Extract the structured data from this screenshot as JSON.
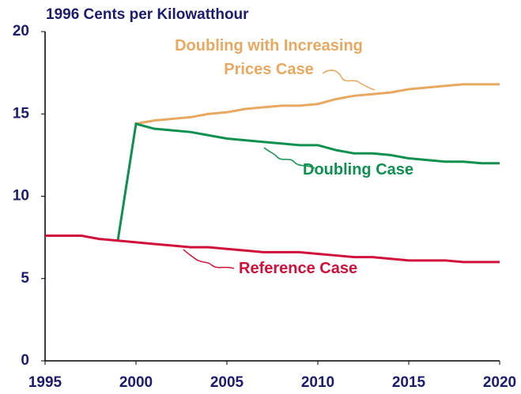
{
  "chart_data": {
    "type": "line",
    "title": "1996 Cents per Kilowatthour",
    "x": [
      1995,
      1996,
      1997,
      1998,
      1999,
      2000,
      2001,
      2002,
      2003,
      2004,
      2005,
      2006,
      2007,
      2008,
      2009,
      2010,
      2011,
      2012,
      2013,
      2014,
      2015,
      2016,
      2017,
      2018,
      2019,
      2020
    ],
    "series": [
      {
        "name": "Doubling with Increasing Prices Case",
        "color": "#e8a860",
        "values": [
          null,
          null,
          null,
          null,
          null,
          14.4,
          14.6,
          14.7,
          14.8,
          15.0,
          15.1,
          15.3,
          15.4,
          15.5,
          15.5,
          15.6,
          15.9,
          16.1,
          16.2,
          16.3,
          16.5,
          16.6,
          16.7,
          16.8,
          16.8,
          16.8
        ]
      },
      {
        "name": "Doubling Case",
        "color": "#109050",
        "values": [
          null,
          null,
          null,
          null,
          7.3,
          14.4,
          14.1,
          14.0,
          13.9,
          13.7,
          13.5,
          13.4,
          13.3,
          13.2,
          13.1,
          13.1,
          12.8,
          12.6,
          12.6,
          12.5,
          12.3,
          12.2,
          12.1,
          12.1,
          12.0,
          12.0
        ]
      },
      {
        "name": "Reference Case",
        "color": "#d0103a",
        "values": [
          7.6,
          7.6,
          7.6,
          7.4,
          7.3,
          7.2,
          7.1,
          7.0,
          6.9,
          6.9,
          6.8,
          6.7,
          6.6,
          6.6,
          6.6,
          6.5,
          6.4,
          6.3,
          6.3,
          6.2,
          6.1,
          6.1,
          6.1,
          6.0,
          6.0,
          6.0
        ]
      }
    ],
    "xlim": [
      1995,
      2020
    ],
    "xticks": [
      1995,
      2000,
      2005,
      2010,
      2015,
      2020
    ],
    "ylim": [
      0,
      20
    ],
    "yticks": [
      0,
      5,
      10,
      15,
      20
    ]
  }
}
